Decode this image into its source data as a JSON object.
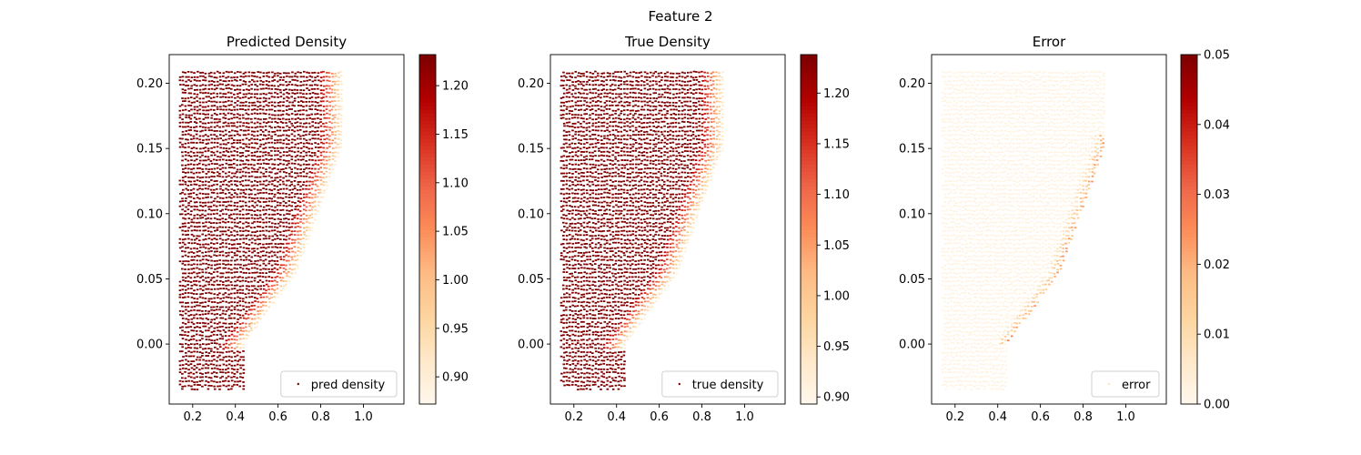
{
  "figure_title": "Feature 2",
  "chart_data": [
    {
      "type": "scatter",
      "title": "Predicted Density",
      "xlabel": "",
      "ylabel": "",
      "xlim": [
        0.09,
        1.19
      ],
      "ylim": [
        -0.046,
        0.222
      ],
      "x_ticks": [
        0.2,
        0.4,
        0.6,
        0.8,
        1.0
      ],
      "x_tick_labels": [
        "0.2",
        "0.4",
        "0.6",
        "0.8",
        "1.0"
      ],
      "y_ticks": [
        0.0,
        0.05,
        0.1,
        0.15,
        0.2
      ],
      "y_tick_labels": [
        "0.00",
        "0.05",
        "0.10",
        "0.15",
        "0.20"
      ],
      "series": [
        {
          "name": "pred density",
          "field": "density"
        }
      ],
      "legend": "lower-right",
      "colormap": "OrRd",
      "colorbar": {
        "min": 0.872,
        "max": 1.232,
        "ticks": [
          0.9,
          0.95,
          1.0,
          1.05,
          1.1,
          1.15,
          1.2
        ],
        "tick_labels": [
          "0.90",
          "0.95",
          "1.00",
          "1.05",
          "1.10",
          "1.15",
          "1.20"
        ]
      },
      "field": {
        "high": 1.232,
        "low": 0.872,
        "duct_low": 0.89,
        "duct_high": 0.96
      }
    },
    {
      "type": "scatter",
      "title": "True Density",
      "xlabel": "",
      "ylabel": "",
      "xlim": [
        0.09,
        1.19
      ],
      "ylim": [
        -0.046,
        0.222
      ],
      "x_ticks": [
        0.2,
        0.4,
        0.6,
        0.8,
        1.0
      ],
      "x_tick_labels": [
        "0.2",
        "0.4",
        "0.6",
        "0.8",
        "1.0"
      ],
      "y_ticks": [
        0.0,
        0.05,
        0.1,
        0.15,
        0.2
      ],
      "y_tick_labels": [
        "0.00",
        "0.05",
        "0.10",
        "0.15",
        "0.20"
      ],
      "series": [
        {
          "name": "true density",
          "field": "density"
        }
      ],
      "legend": "lower-right",
      "colormap": "OrRd",
      "colorbar": {
        "min": 0.893,
        "max": 1.238,
        "ticks": [
          0.9,
          0.95,
          1.0,
          1.05,
          1.1,
          1.15,
          1.2
        ],
        "tick_labels": [
          "0.90",
          "0.95",
          "1.00",
          "1.05",
          "1.10",
          "1.15",
          "1.20"
        ]
      },
      "field": {
        "high": 1.238,
        "low": 0.893,
        "duct_low": 0.905,
        "duct_high": 0.97
      }
    },
    {
      "type": "scatter",
      "title": "Error",
      "xlabel": "",
      "ylabel": "",
      "xlim": [
        0.09,
        1.19
      ],
      "ylim": [
        -0.046,
        0.222
      ],
      "x_ticks": [
        0.2,
        0.4,
        0.6,
        0.8,
        1.0
      ],
      "x_tick_labels": [
        "0.2",
        "0.4",
        "0.6",
        "0.8",
        "1.0"
      ],
      "y_ticks": [
        0.0,
        0.05,
        0.1,
        0.15,
        0.2
      ],
      "y_tick_labels": [
        "0.00",
        "0.05",
        "0.10",
        "0.15",
        "0.20"
      ],
      "series": [
        {
          "name": "error",
          "field": "error"
        }
      ],
      "legend": "lower-right",
      "colormap": "OrRd",
      "colorbar": {
        "min": 0.0,
        "max": 0.05,
        "ticks": [
          0.0,
          0.01,
          0.02,
          0.03,
          0.04,
          0.05
        ],
        "tick_labels": [
          "0.00",
          "0.01",
          "0.02",
          "0.03",
          "0.04",
          "0.05"
        ]
      },
      "field": {
        "high": 0.002,
        "low": 0.001,
        "duct_low": 0.035,
        "duct_high": 0.05,
        "shock": 0.03
      }
    }
  ]
}
